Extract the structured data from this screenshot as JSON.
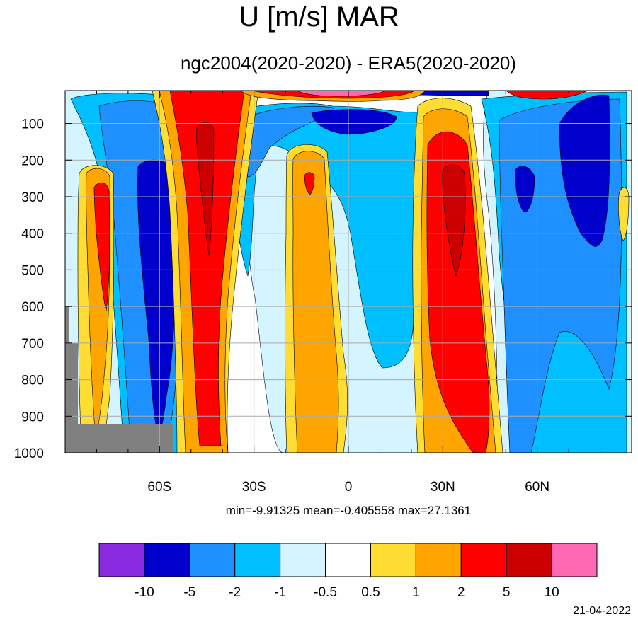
{
  "title": "U [m/s] MAR",
  "subtitle": "ngc2004(2020-2020) - ERA5(2020-2020)",
  "stats": "min=-9.91325   mean=-0.405558   max=27.1361",
  "date": "21-04-2022",
  "chart_data": {
    "type": "contour",
    "variable": "U [m/s]",
    "x": {
      "label": "",
      "range": [
        -90,
        90
      ],
      "ticks": [
        -60,
        -30,
        0,
        30,
        60
      ],
      "tick_labels": [
        "60S",
        "30S",
        "0",
        "30N",
        "60N"
      ]
    },
    "y": {
      "label": "",
      "range": [
        1000,
        10
      ],
      "reversed": true,
      "ticks": [
        100,
        200,
        300,
        400,
        500,
        600,
        700,
        800,
        900,
        1000
      ],
      "tick_labels": [
        "100",
        "200",
        "300",
        "400",
        "500",
        "600",
        "700",
        "800",
        "900",
        "1000"
      ]
    },
    "grid": true,
    "min": -9.91325,
    "mean": -0.405558,
    "max": 27.1361,
    "colorbar": {
      "levels": [
        -10,
        -5,
        -2,
        -1,
        -0.5,
        0.5,
        1,
        2,
        5,
        10
      ],
      "labels": [
        "-10",
        "-5",
        "-2",
        "-1",
        "-0.5",
        "0.5",
        "1",
        "2",
        "5",
        "10"
      ],
      "colors": [
        "#8a2be2",
        "#0000cd",
        "#1e90ff",
        "#00bfff",
        "#d4f4ff",
        "#ffffff",
        "#ffdd33",
        "#ffa500",
        "#ff0000",
        "#cc0000",
        "#ff69b4"
      ]
    },
    "features": [
      {
        "name": "SH jet",
        "lat": -45,
        "p": [
          100,
          1000
        ],
        "level": "5 to 10"
      },
      {
        "name": "NH jet",
        "lat": 33,
        "p": [
          150,
          1000
        ],
        "level": "5 to 10"
      },
      {
        "name": "SH high-lat negative",
        "lat": -62,
        "p": [
          200,
          700
        ],
        "level": "-10 to -5"
      },
      {
        "name": "NH high-lat negative",
        "lat": 75,
        "p": [
          40,
          450
        ],
        "level": "-10 to -5"
      },
      {
        "name": "tropical UT negative",
        "lat": 5,
        "p": [
          50,
          200
        ],
        "level": "-10 to -5"
      },
      {
        "name": "masked orography",
        "lat": [
          -90,
          -55
        ],
        "p": [
          600,
          1000
        ],
        "level": "missing"
      }
    ]
  }
}
